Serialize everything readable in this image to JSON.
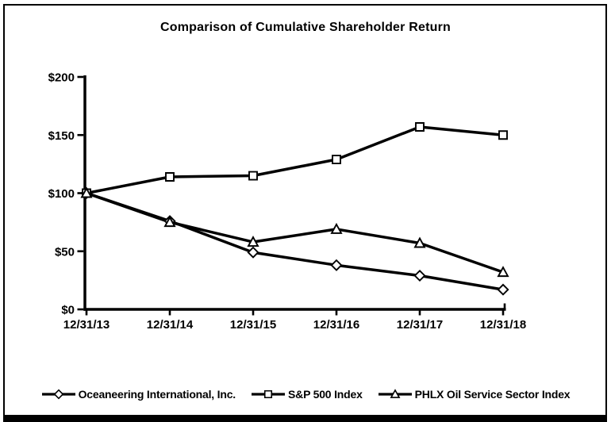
{
  "chart_data": {
    "type": "line",
    "title": "Comparison of Cumulative Shareholder Return",
    "xlabel": "",
    "ylabel": "",
    "x_labels": [
      "12/31/13",
      "12/31/14",
      "12/31/15",
      "12/31/16",
      "12/31/17",
      "12/31/18"
    ],
    "ylim": [
      0,
      200
    ],
    "y_ticks": [
      {
        "value": 0,
        "label": "$0"
      },
      {
        "value": 50,
        "label": "$50"
      },
      {
        "value": 100,
        "label": "$100"
      },
      {
        "value": 150,
        "label": "$150"
      },
      {
        "value": 200,
        "label": "$200"
      }
    ],
    "grid": false,
    "legend_position": "bottom",
    "line_color": "#000000",
    "marker_fill": "#ffffff",
    "series": [
      {
        "name": "Oceaneering International, Inc.",
        "marker": "diamond",
        "values": [
          100,
          76,
          49,
          38,
          29,
          17
        ]
      },
      {
        "name": "S&P 500 Index",
        "marker": "square",
        "values": [
          100,
          114,
          115,
          129,
          157,
          150
        ]
      },
      {
        "name": "PHLX Oil Service Sector Index",
        "marker": "triangle",
        "values": [
          100,
          75,
          58,
          69,
          57,
          32
        ]
      }
    ]
  }
}
